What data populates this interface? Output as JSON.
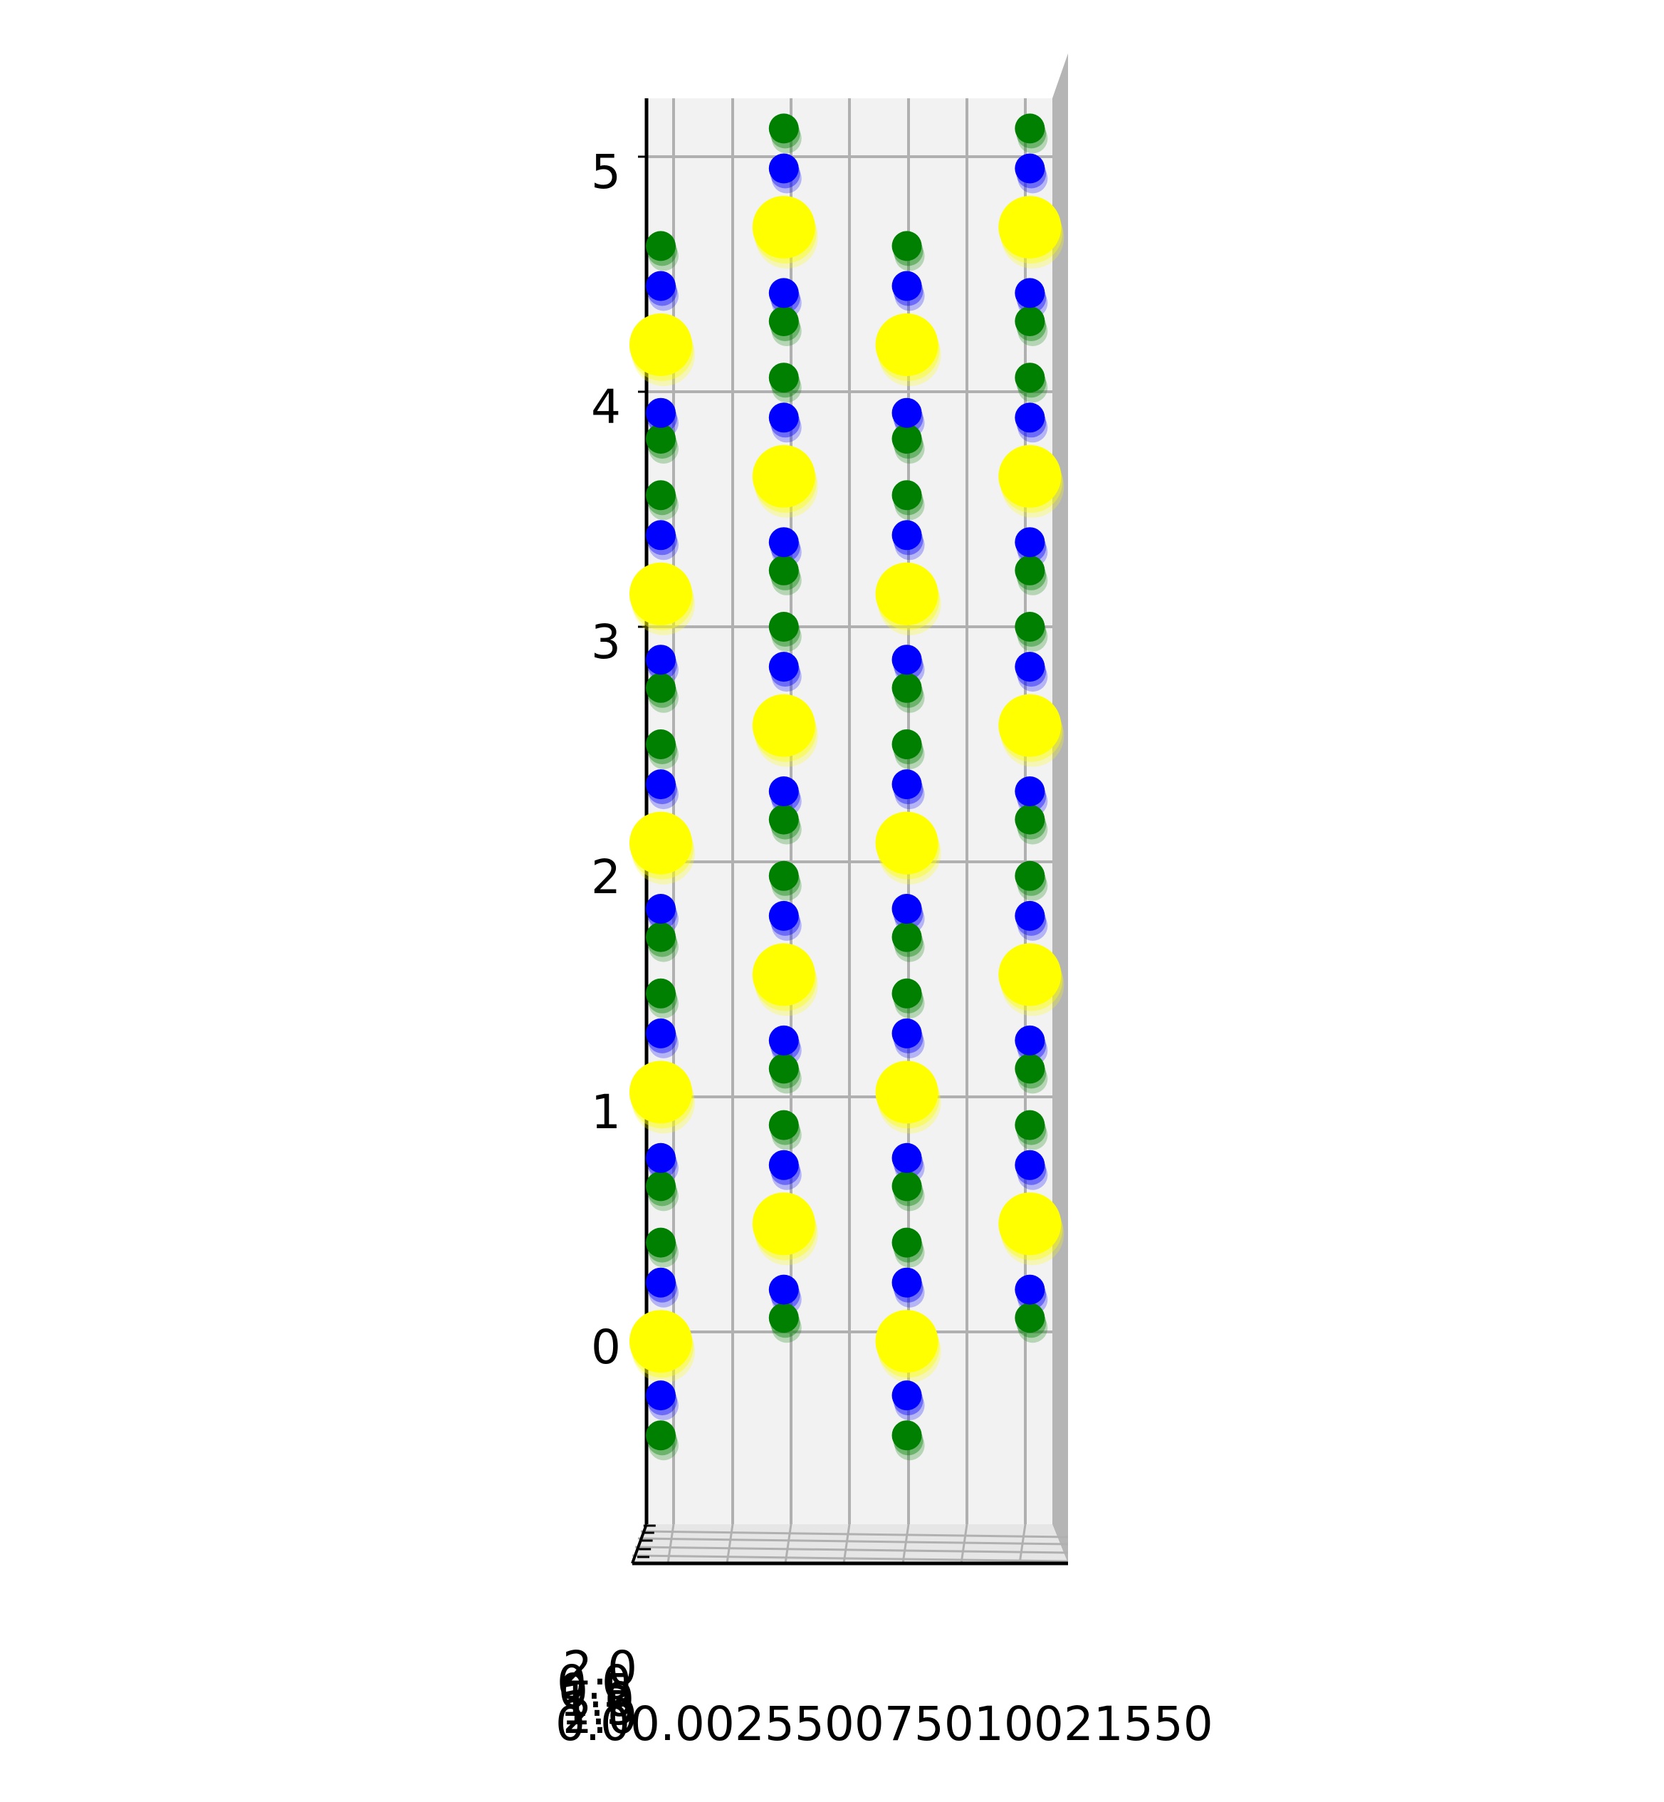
{
  "chart_data": {
    "type": "scatter",
    "projection": "3d",
    "view": "side, looking along the depth axis",
    "grid": true,
    "legend": "none",
    "colors": {
      "pane_back": "#f2f2f2",
      "pane_side": "#b5b5b5",
      "grid": "#b0b0b0",
      "axis": "#000000",
      "blue": "#0000ff",
      "green": "#008000",
      "yellow": "#ffff00"
    },
    "axes": {
      "vertical": {
        "ticks": [
          "0",
          "1",
          "2",
          "3",
          "4",
          "5"
        ],
        "range": [
          -0.7,
          5.3
        ]
      },
      "horizontal": {
        "ticks": [
          "0.00",
          "0.25",
          "0.50",
          "0.75",
          "1.00",
          "1.25",
          "1.50"
        ],
        "label_text": "0.00.002550075010021550",
        "range": [
          -0.05,
          1.56
        ]
      },
      "depth": {
        "ticks": [
          "0.0",
          "0.5",
          "1.0",
          "1.5",
          "2.0"
        ],
        "label_text": "2.0"
      }
    },
    "series": [
      {
        "color": "#008000",
        "size": "small",
        "points": [
          {
            "x": 0.05,
            "z": 4.62
          },
          {
            "x": 0.05,
            "z": 3.8
          },
          {
            "x": 0.05,
            "z": 3.56
          },
          {
            "x": 0.05,
            "z": 2.74
          },
          {
            "x": 0.05,
            "z": 2.5
          },
          {
            "x": 0.05,
            "z": 1.68
          },
          {
            "x": 0.05,
            "z": 1.44
          },
          {
            "x": 0.05,
            "z": 0.62
          },
          {
            "x": 0.05,
            "z": 0.38
          },
          {
            "x": 0.05,
            "z": -0.44
          },
          {
            "x": 0.58,
            "z": 5.12
          },
          {
            "x": 0.58,
            "z": 4.3
          },
          {
            "x": 0.58,
            "z": 4.06
          },
          {
            "x": 0.58,
            "z": 3.24
          },
          {
            "x": 0.58,
            "z": 3.0
          },
          {
            "x": 0.58,
            "z": 2.18
          },
          {
            "x": 0.58,
            "z": 1.94
          },
          {
            "x": 0.58,
            "z": 1.12
          },
          {
            "x": 0.58,
            "z": 0.88
          },
          {
            "x": 0.58,
            "z": 0.06
          },
          {
            "x": 1.11,
            "z": 4.62
          },
          {
            "x": 1.11,
            "z": 3.8
          },
          {
            "x": 1.11,
            "z": 3.56
          },
          {
            "x": 1.11,
            "z": 2.74
          },
          {
            "x": 1.11,
            "z": 2.5
          },
          {
            "x": 1.11,
            "z": 1.68
          },
          {
            "x": 1.11,
            "z": 1.44
          },
          {
            "x": 1.11,
            "z": 0.62
          },
          {
            "x": 1.11,
            "z": 0.38
          },
          {
            "x": 1.11,
            "z": -0.44
          },
          {
            "x": 1.64,
            "z": 5.12
          },
          {
            "x": 1.64,
            "z": 4.3
          },
          {
            "x": 1.64,
            "z": 4.06
          },
          {
            "x": 1.64,
            "z": 3.24
          },
          {
            "x": 1.64,
            "z": 3.0
          },
          {
            "x": 1.64,
            "z": 2.18
          },
          {
            "x": 1.64,
            "z": 1.94
          },
          {
            "x": 1.64,
            "z": 1.12
          },
          {
            "x": 1.64,
            "z": 0.88
          },
          {
            "x": 1.64,
            "z": 0.06
          }
        ]
      },
      {
        "color": "#0000ff",
        "size": "small",
        "points": [
          {
            "x": 0.05,
            "z": 4.45
          },
          {
            "x": 0.05,
            "z": 3.91
          },
          {
            "x": 0.05,
            "z": 3.39
          },
          {
            "x": 0.05,
            "z": 2.86
          },
          {
            "x": 0.05,
            "z": 2.33
          },
          {
            "x": 0.05,
            "z": 1.8
          },
          {
            "x": 0.05,
            "z": 1.27
          },
          {
            "x": 0.05,
            "z": 0.74
          },
          {
            "x": 0.05,
            "z": 0.21
          },
          {
            "x": 0.05,
            "z": -0.27
          },
          {
            "x": 0.58,
            "z": 4.95
          },
          {
            "x": 0.58,
            "z": 4.42
          },
          {
            "x": 0.58,
            "z": 3.89
          },
          {
            "x": 0.58,
            "z": 3.36
          },
          {
            "x": 0.58,
            "z": 2.83
          },
          {
            "x": 0.58,
            "z": 2.3
          },
          {
            "x": 0.58,
            "z": 1.77
          },
          {
            "x": 0.58,
            "z": 1.24
          },
          {
            "x": 0.58,
            "z": 0.71
          },
          {
            "x": 0.58,
            "z": 0.18
          },
          {
            "x": 1.11,
            "z": 4.45
          },
          {
            "x": 1.11,
            "z": 3.91
          },
          {
            "x": 1.11,
            "z": 3.39
          },
          {
            "x": 1.11,
            "z": 2.86
          },
          {
            "x": 1.11,
            "z": 2.33
          },
          {
            "x": 1.11,
            "z": 1.8
          },
          {
            "x": 1.11,
            "z": 1.27
          },
          {
            "x": 1.11,
            "z": 0.74
          },
          {
            "x": 1.11,
            "z": 0.21
          },
          {
            "x": 1.11,
            "z": -0.27
          },
          {
            "x": 1.64,
            "z": 4.95
          },
          {
            "x": 1.64,
            "z": 4.42
          },
          {
            "x": 1.64,
            "z": 3.89
          },
          {
            "x": 1.64,
            "z": 3.36
          },
          {
            "x": 1.64,
            "z": 2.83
          },
          {
            "x": 1.64,
            "z": 2.3
          },
          {
            "x": 1.64,
            "z": 1.77
          },
          {
            "x": 1.64,
            "z": 1.24
          },
          {
            "x": 1.64,
            "z": 0.71
          },
          {
            "x": 1.64,
            "z": 0.18
          }
        ]
      },
      {
        "color": "#ffff00",
        "size": "large",
        "points": [
          {
            "x": 0.05,
            "z": 4.2
          },
          {
            "x": 0.05,
            "z": 3.14
          },
          {
            "x": 0.05,
            "z": 2.08
          },
          {
            "x": 0.05,
            "z": 1.02
          },
          {
            "x": 0.05,
            "z": -0.04
          },
          {
            "x": 0.58,
            "z": 4.7
          },
          {
            "x": 0.58,
            "z": 3.64
          },
          {
            "x": 0.58,
            "z": 2.58
          },
          {
            "x": 0.58,
            "z": 1.52
          },
          {
            "x": 0.58,
            "z": 0.46
          },
          {
            "x": 1.11,
            "z": 4.2
          },
          {
            "x": 1.11,
            "z": 3.14
          },
          {
            "x": 1.11,
            "z": 2.08
          },
          {
            "x": 1.11,
            "z": 1.02
          },
          {
            "x": 1.11,
            "z": -0.04
          },
          {
            "x": 1.64,
            "z": 4.7
          },
          {
            "x": 1.64,
            "z": 3.64
          },
          {
            "x": 1.64,
            "z": 2.58
          },
          {
            "x": 1.64,
            "z": 1.52
          },
          {
            "x": 1.64,
            "z": 0.46
          }
        ]
      }
    ]
  }
}
